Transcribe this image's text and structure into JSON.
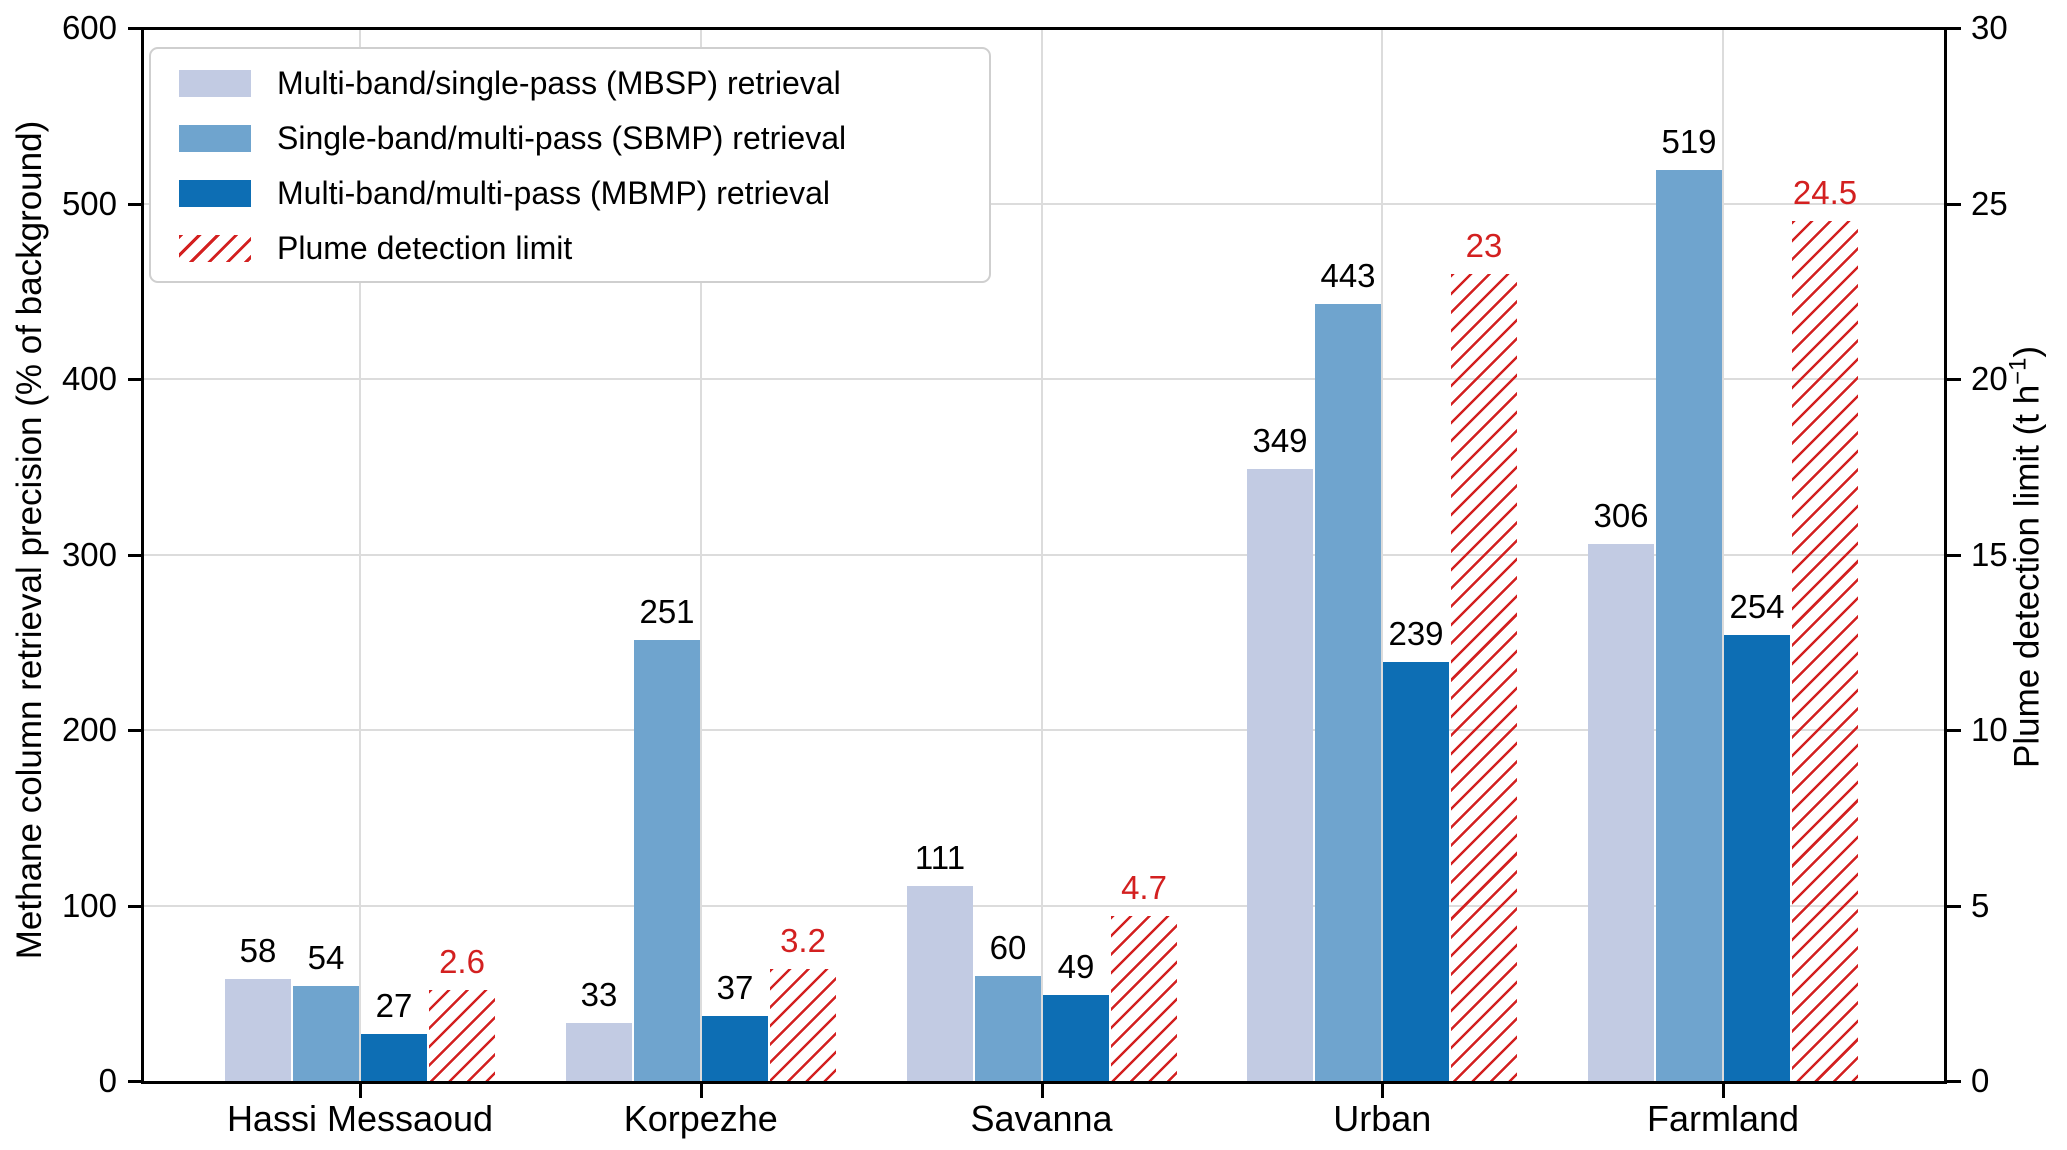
{
  "chart_data": {
    "type": "bar",
    "title": "",
    "categories": [
      "Hassi Messaoud",
      "Korpezhe",
      "Savanna",
      "Urban",
      "Farmland"
    ],
    "series": [
      {
        "key": "mbsp",
        "name": "Multi-band/single-pass (MBSP) retrieval",
        "axis": "left",
        "style": "solid",
        "color": "#c2cbe3",
        "values": [
          58,
          33,
          111,
          349,
          306
        ],
        "value_labels": [
          "58",
          "33",
          "111",
          "349",
          "306"
        ]
      },
      {
        "key": "sbmp",
        "name": "Single-band/multi-pass (SBMP) retrieval",
        "axis": "left",
        "style": "solid",
        "color": "#6fa4ce",
        "values": [
          54,
          251,
          60,
          443,
          519
        ],
        "value_labels": [
          "54",
          "251",
          "60",
          "443",
          "519"
        ]
      },
      {
        "key": "mbmp",
        "name": "Multi-band/multi-pass (MBMP) retrieval",
        "axis": "left",
        "style": "solid",
        "color": "#0d6eb4",
        "values": [
          27,
          37,
          49,
          239,
          254
        ],
        "value_labels": [
          "27",
          "37",
          "49",
          "239",
          "254"
        ]
      },
      {
        "key": "plume-detection-limit",
        "name": "Plume detection limit",
        "axis": "right",
        "style": "hatched",
        "color": "#d32020",
        "values": [
          2.6,
          3.2,
          4.7,
          23,
          24.5
        ],
        "value_labels": [
          "2.6",
          "3.2",
          "4.7",
          "23",
          "24.5"
        ]
      }
    ],
    "left_axis": {
      "label": "Methane column retrieval precision (% of background)",
      "min": 0,
      "max": 600,
      "ticks": [
        0,
        100,
        200,
        300,
        400,
        500,
        600
      ]
    },
    "right_axis": {
      "label_pre": "Plume detection limit (t h",
      "label_sup": "−1",
      "label_post": ")",
      "min": 0,
      "max": 30,
      "ticks": [
        0,
        5,
        10,
        15,
        20,
        25,
        30
      ]
    },
    "grid": true,
    "legend_position": "upper-left",
    "grid_color": "#dcdcdc",
    "text_color": "#000000"
  }
}
